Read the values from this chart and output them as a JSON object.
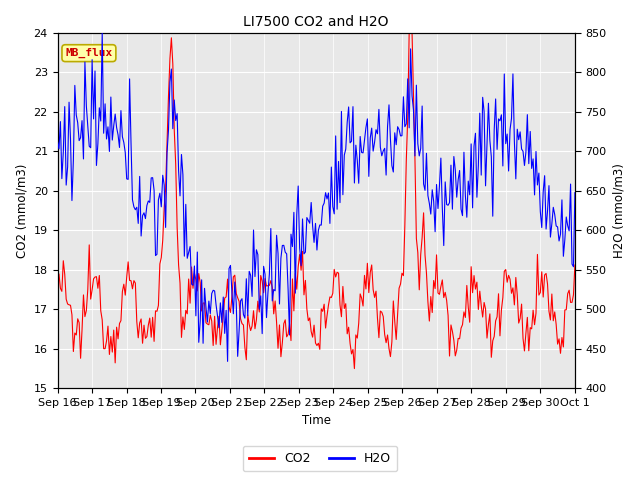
{
  "title": "LI7500 CO2 and H2O",
  "xlabel": "Time",
  "ylabel_left": "CO2 (mmol/m3)",
  "ylabel_right": "H2O (mmol/m3)",
  "ylim_left": [
    15.0,
    24.0
  ],
  "ylim_right": [
    400,
    850
  ],
  "co2_color": "#FF0000",
  "h2o_color": "#0000FF",
  "bg_color": "#FFFFFF",
  "plot_bg_color": "#E8E8E8",
  "annotation_text": "MB_flux",
  "annotation_bg": "#FFFFAA",
  "annotation_border": "#BBAA00",
  "legend_co2": "CO2",
  "legend_h2o": "H2O",
  "linewidth": 0.8,
  "x_tick_labels": [
    "Sep 16",
    "Sep 17",
    "Sep 18",
    "Sep 19",
    "Sep 20",
    "Sep 21",
    "Sep 22",
    "Sep 23",
    "Sep 24",
    "Sep 25",
    "Sep 26",
    "Sep 27",
    "Sep 28",
    "Sep 29",
    "Sep 30",
    "Oct 1"
  ],
  "yticks_left": [
    15.0,
    16.0,
    17.0,
    18.0,
    19.0,
    20.0,
    21.0,
    22.0,
    23.0,
    24.0
  ],
  "yticks_right": [
    400,
    450,
    500,
    550,
    600,
    650,
    700,
    750,
    800,
    850
  ]
}
